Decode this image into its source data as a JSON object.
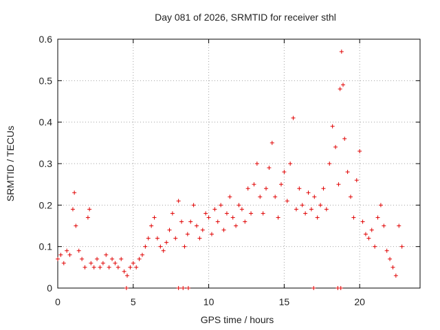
{
  "chart_data": {
    "type": "scatter",
    "title": "Day 081 of 2026, SRMTID for receiver sthl",
    "xlabel": "GPS time / hours",
    "ylabel": "SRMTID / TECUs",
    "xlim": [
      0,
      24
    ],
    "ylim": [
      0,
      0.6
    ],
    "xticks": [
      0,
      5,
      10,
      15,
      20
    ],
    "yticks": [
      0,
      0.1,
      0.2,
      0.3,
      0.4,
      0.5,
      0.6
    ],
    "xtick_labels": [
      "0",
      "5",
      "10",
      "15",
      "20"
    ],
    "ytick_labels": [
      "0",
      "0.1",
      "0.2",
      "0.3",
      "0.4",
      "0.5",
      "0.6"
    ],
    "grid": true,
    "marker": "+",
    "color": "#e00000",
    "series": [
      {
        "name": "SRMTID",
        "x": [
          0.0,
          0.2,
          0.4,
          0.6,
          0.8,
          1.0,
          1.1,
          1.2,
          1.4,
          1.6,
          1.8,
          2.0,
          2.1,
          2.2,
          2.4,
          2.6,
          2.8,
          3.0,
          3.2,
          3.4,
          3.6,
          3.8,
          4.0,
          4.2,
          4.4,
          4.6,
          4.8,
          5.0,
          5.2,
          5.4,
          5.6,
          5.8,
          6.0,
          6.2,
          6.4,
          6.6,
          6.8,
          7.0,
          7.2,
          7.4,
          7.6,
          7.8,
          8.0,
          8.2,
          8.4,
          8.6,
          8.8,
          9.0,
          9.2,
          9.4,
          9.6,
          9.8,
          10.0,
          10.2,
          10.4,
          10.6,
          10.8,
          11.0,
          11.2,
          11.4,
          11.6,
          11.8,
          12.0,
          12.2,
          12.4,
          12.6,
          12.8,
          13.0,
          13.2,
          13.4,
          13.6,
          13.8,
          14.0,
          14.2,
          14.4,
          14.6,
          14.8,
          15.0,
          15.2,
          15.4,
          15.6,
          15.8,
          16.0,
          16.2,
          16.4,
          16.6,
          16.8,
          17.0,
          17.2,
          17.4,
          17.6,
          17.8,
          18.0,
          18.2,
          18.4,
          18.6,
          18.7,
          18.8,
          18.9,
          19.0,
          19.2,
          19.4,
          19.6,
          19.8,
          20.0,
          20.2,
          20.4,
          20.6,
          20.8,
          21.0,
          21.2,
          21.4,
          21.6,
          21.8,
          22.0,
          22.2,
          22.4,
          22.6,
          22.8,
          4.55,
          8.0,
          8.3,
          8.65,
          16.95,
          18.55,
          18.75
        ],
        "y": [
          0.07,
          0.08,
          0.06,
          0.09,
          0.08,
          0.19,
          0.23,
          0.15,
          0.09,
          0.07,
          0.05,
          0.17,
          0.19,
          0.06,
          0.05,
          0.07,
          0.05,
          0.06,
          0.08,
          0.05,
          0.07,
          0.06,
          0.05,
          0.07,
          0.04,
          0.03,
          0.05,
          0.06,
          0.05,
          0.07,
          0.08,
          0.1,
          0.12,
          0.15,
          0.17,
          0.12,
          0.1,
          0.09,
          0.11,
          0.14,
          0.18,
          0.12,
          0.21,
          0.16,
          0.1,
          0.13,
          0.16,
          0.2,
          0.15,
          0.12,
          0.14,
          0.18,
          0.17,
          0.13,
          0.19,
          0.16,
          0.2,
          0.14,
          0.18,
          0.22,
          0.17,
          0.15,
          0.2,
          0.19,
          0.16,
          0.24,
          0.18,
          0.25,
          0.3,
          0.22,
          0.18,
          0.24,
          0.29,
          0.35,
          0.22,
          0.17,
          0.25,
          0.28,
          0.21,
          0.3,
          0.41,
          0.19,
          0.24,
          0.2,
          0.18,
          0.23,
          0.19,
          0.22,
          0.17,
          0.2,
          0.24,
          0.19,
          0.3,
          0.39,
          0.34,
          0.25,
          0.48,
          0.57,
          0.49,
          0.36,
          0.28,
          0.22,
          0.17,
          0.26,
          0.33,
          0.16,
          0.13,
          0.12,
          0.14,
          0.1,
          0.17,
          0.2,
          0.15,
          0.09,
          0.07,
          0.05,
          0.03,
          0.15,
          0.1,
          0.0,
          0.0,
          0.0,
          0.0,
          0.0,
          0.0,
          0.0
        ]
      }
    ]
  }
}
